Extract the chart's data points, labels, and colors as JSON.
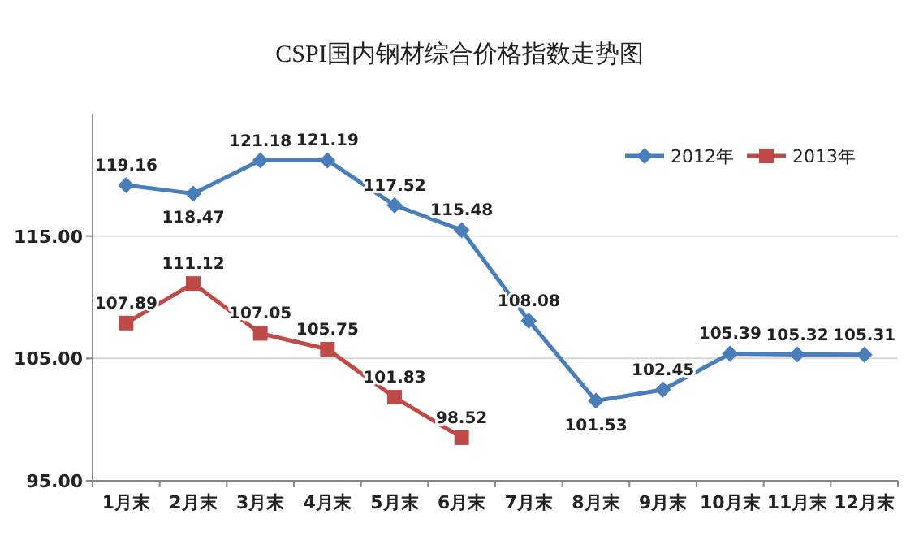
{
  "chart_data": {
    "type": "line",
    "title": "CSPI国内钢材综合价格指数走势图",
    "categories": [
      "1月末",
      "2月末",
      "3月末",
      "4月末",
      "5月末",
      "6月末",
      "7月末",
      "8月末",
      "9月末",
      "10月末",
      "11月末",
      "12月末"
    ],
    "series": [
      {
        "name": "2012年",
        "color": "#4a7ebb",
        "marker": "diamond",
        "values": [
          119.16,
          118.47,
          121.18,
          121.19,
          117.52,
          115.48,
          108.08,
          101.53,
          102.45,
          105.39,
          105.32,
          105.31
        ]
      },
      {
        "name": "2013年",
        "color": "#be4b48",
        "marker": "square",
        "values": [
          107.89,
          111.12,
          107.05,
          105.75,
          101.83,
          98.52,
          null,
          null,
          null,
          null,
          null,
          null
        ]
      }
    ],
    "ylim": [
      95,
      125
    ],
    "yticks": [
      {
        "value": 95,
        "label": "95.00"
      },
      {
        "value": 105,
        "label": "105.00"
      },
      {
        "value": 115,
        "label": "115.00"
      }
    ],
    "grid": "y",
    "legend": "top right",
    "data_labels": true
  }
}
